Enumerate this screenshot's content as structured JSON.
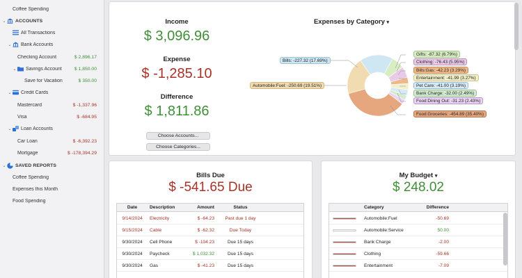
{
  "sidebar": {
    "top_item": "Coffee Spending",
    "accounts_header": "ACCOUNTS",
    "all_transactions": "All Transactions",
    "bank_accounts": {
      "label": "Bank Accounts",
      "items": [
        {
          "name": "Checking Account",
          "amount": "$ 2,896.17"
        },
        {
          "name": "Savings Account",
          "amount": "$ 1,850.00"
        },
        {
          "name": "Save for Vacation",
          "amount": "$ 350.00"
        }
      ]
    },
    "credit_cards": {
      "label": "Credit Cards",
      "items": [
        {
          "name": "Mastercard",
          "amount": "$ -1,337.96"
        },
        {
          "name": "Visa",
          "amount": "$ -684.95"
        }
      ]
    },
    "loan_accounts": {
      "label": "Loan Accounts",
      "items": [
        {
          "name": "Car Loan",
          "amount": "$ -6,392.23"
        },
        {
          "name": "Mortgage",
          "amount": "$ -178,394.29"
        }
      ]
    },
    "saved_reports_header": "SAVED REPORTS",
    "reports": [
      "Coffee Spending",
      "Expenses this Month",
      "Food Spending"
    ]
  },
  "summary": {
    "income_label": "Income",
    "income_value": "$ 3,096.96",
    "expense_label": "Expense",
    "expense_value": "$ -1,285.10",
    "difference_label": "Difference",
    "difference_value": "$ 1,811.86",
    "choose_accounts": "Choose Accounts...",
    "choose_categories": "Choose Categories..."
  },
  "expenses_chart": {
    "title": "Expenses by Category",
    "dropdown_glyph": "▾"
  },
  "chart_data": {
    "type": "pie",
    "title": "Expenses by Category",
    "slices": [
      {
        "label": "Food:Groceries: -454.89 (35.40%)",
        "value": 454.89,
        "percent": 35.4,
        "color": "#e6a77e"
      },
      {
        "label": "Automobile:Fuel: -250.69 (19.51%)",
        "value": 250.69,
        "percent": 19.51,
        "color": "#f1dcb2"
      },
      {
        "label": "Bills: -227.32 (17.69%)",
        "value": 227.32,
        "percent": 17.69,
        "color": "#cfe6f3"
      },
      {
        "label": "Gifts: -87.32 (6.79%)",
        "value": 87.32,
        "percent": 6.79,
        "color": "#d8eec2"
      },
      {
        "label": "Clothing: -76.43 (5.95%)",
        "value": 76.43,
        "percent": 5.95,
        "color": "#e9cbe9"
      },
      {
        "label": "Bills:Gas: -42.23 (3.29%)",
        "value": 42.23,
        "percent": 3.29,
        "color": "#edb98a"
      },
      {
        "label": "Entertainment: -41.99 (3.27%)",
        "value": 41.99,
        "percent": 3.27,
        "color": "#f3efc8"
      },
      {
        "label": "Pet Care: -41.00 (3.19%)",
        "value": 41.0,
        "percent": 3.19,
        "color": "#d6e9f5"
      },
      {
        "label": "Bank Charge: -32.00 (2.49%)",
        "value": 32.0,
        "percent": 2.49,
        "color": "#d3ebcf"
      },
      {
        "label": "Food:Dining Out: -31.23 (2.43%)",
        "value": 31.23,
        "percent": 2.43,
        "color": "#e9d5f2"
      }
    ]
  },
  "bills": {
    "title": "Bills Due",
    "total": "$ -541.65 Due",
    "columns": [
      "Date",
      "Description",
      "Amount",
      "Status"
    ],
    "rows": [
      {
        "date": "9/14/2024",
        "description": "Electricity",
        "amount": "$ -64.23",
        "status": "Past due 1 day",
        "overdue": true
      },
      {
        "date": "9/15/2024",
        "description": "Cable",
        "amount": "$ -62.32",
        "status": "Due Today",
        "overdue": true
      },
      {
        "date": "9/30/2024",
        "description": "Cell Phone",
        "amount": "$ -104.23",
        "status": "Due 15 days",
        "overdue": false
      },
      {
        "date": "9/30/2024",
        "description": "Paycheck",
        "amount": "$ 1,032.32",
        "status": "Due 15 days",
        "overdue": false
      },
      {
        "date": "9/30/2024",
        "description": "Gas",
        "amount": "$ -41.23",
        "status": "Due 15 days",
        "overdue": false
      }
    ]
  },
  "budget": {
    "title": "My Budget",
    "dropdown_glyph": "▾",
    "total": "$ 248.02",
    "columns": [
      "Category",
      "Difference"
    ],
    "rows": [
      {
        "category": "Automobile:Fuel",
        "difference": "-50.69",
        "fill": 1.0
      },
      {
        "category": "Automobile:Service",
        "difference": "50.00",
        "fill": 0.0
      },
      {
        "category": "Bank Charge",
        "difference": "-2.00",
        "fill": 1.0
      },
      {
        "category": "Clothing",
        "difference": "-59.66",
        "fill": 1.0
      },
      {
        "category": "Entertainment",
        "difference": "-7.09",
        "fill": 1.0
      }
    ]
  },
  "colors": {
    "positive": "#3f8f36",
    "negative": "#a83226",
    "accent": "#2f6fd8"
  }
}
